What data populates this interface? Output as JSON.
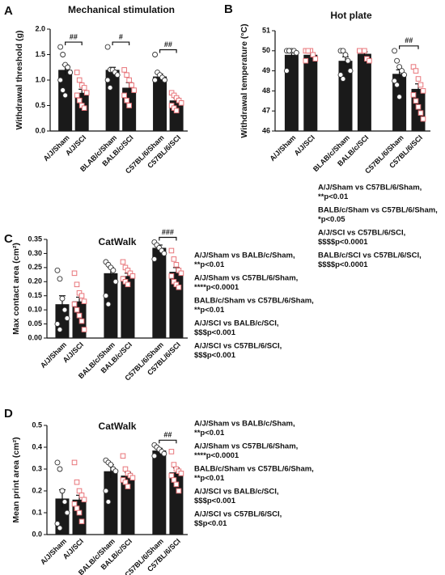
{
  "chart_data": [
    {
      "type": "bar",
      "letter": "A",
      "title": "Mechanical stimulation",
      "ylabel": "Withdrawal threshold (g)",
      "categories": [
        "A/J/Sham",
        "A/J/SCI",
        "BLAB/c/Sham",
        "BALB/c/SCI",
        "C57BL/6/Sham",
        "C57BL/6/SCI"
      ],
      "values": [
        1.2,
        0.75,
        1.2,
        0.85,
        1.07,
        0.6
      ],
      "errors": [
        0.1,
        0.07,
        0.05,
        0.1,
        0.05,
        0.05
      ],
      "points": [
        [
          1.65,
          1.5,
          1.3,
          1.25,
          1.15,
          1.0,
          0.8,
          0.7
        ],
        [
          1.15,
          1.0,
          0.9,
          0.85,
          0.75,
          0.7,
          0.6,
          0.5,
          0.45
        ],
        [
          1.65,
          1.2,
          1.2,
          1.15,
          1.1,
          1.0,
          0.85
        ],
        [
          1.2,
          1.1,
          1.0,
          0.9,
          0.8,
          0.7,
          0.6,
          0.5
        ],
        [
          1.5,
          1.15,
          1.1,
          1.05,
          1.0,
          1.0
        ],
        [
          0.75,
          0.7,
          0.65,
          0.6,
          0.55,
          0.5,
          0.45,
          0.4
        ]
      ],
      "color": "#1a1a1a",
      "sham_color": "#333333",
      "sci_color": "#e8757a",
      "ylim": [
        0,
        2
      ],
      "yticks": [
        {
          "value": 0,
          "label": "0.0"
        },
        0.5,
        {
          "value": 1,
          "label": "1.0"
        },
        1.5,
        {
          "value": 2,
          "label": "2.0"
        }
      ],
      "significance": [
        {
          "label": "##",
          "pair": [
            0,
            1
          ]
        },
        {
          "label": "#",
          "pair": [
            2,
            3
          ]
        },
        {
          "label": "##",
          "pair": [
            4,
            5
          ]
        }
      ]
    },
    {
      "type": "bar",
      "letter": "B",
      "title": "Hot plate",
      "ylabel": "Withdrawal temperature (°C)",
      "categories": [
        "A/J/Sham",
        "A/J/SCI",
        "BLAB/c/Sham",
        "BALB/c/SCI",
        "C57BL/6/Sham",
        "C57BL/6/SCI"
      ],
      "values": [
        49.8,
        49.8,
        49.5,
        49.85,
        48.85,
        48.1
      ],
      "errors": [
        0.15,
        0.1,
        0.2,
        0.1,
        0.2,
        0.25
      ],
      "points": [
        [
          50,
          50,
          50,
          50,
          49.9,
          49,
          50
        ],
        [
          50,
          50,
          50,
          49.8,
          49.6,
          49.5,
          50
        ],
        [
          50,
          50,
          49.8,
          49.5,
          49,
          48.8,
          48.6
        ],
        [
          50,
          50,
          50,
          49.6,
          49.5,
          50
        ],
        [
          50,
          49.5,
          49.2,
          49,
          48.8,
          48.5,
          48.3,
          47.7
        ],
        [
          49.2,
          49,
          48.6,
          48.3,
          48,
          47.8,
          47.5,
          47.2,
          46.9,
          46.6
        ]
      ],
      "color": "#1a1a1a",
      "sham_color": "#333333",
      "sci_color": "#e8757a",
      "ylim": [
        46,
        51
      ],
      "yticks": [
        46,
        47,
        48,
        49,
        50,
        51
      ],
      "significance": [
        {
          "label": "##",
          "pair": [
            4,
            5
          ]
        }
      ],
      "notes": [
        "A/J/Sham vs C57BL/6/Sham,",
        "**p<0.01",
        "BALB/c/Sham vs C57BL/6/Sham,",
        "*p<0.05",
        "A/J/SCI vs C57BL/6/SCI,",
        "$$$$p<0.0001",
        "BALB/c/SCI vs C57BL/6/SCI,",
        "$$$$p<0.0001"
      ]
    },
    {
      "type": "bar",
      "letter": "C",
      "title": "CatWalk",
      "ylabel": "Max contact area (cm²)",
      "categories": [
        "A/J/Sham",
        "A/J/SCI",
        "BALB/c/Sham",
        "BALB/c/SCI",
        "C57BL/6/Sham",
        "C57BL/6/SCI"
      ],
      "values": [
        0.12,
        0.13,
        0.23,
        0.22,
        0.32,
        0.235
      ],
      "errors": [
        0.03,
        0.015,
        0.02,
        0.01,
        0.01,
        0.015
      ],
      "points": [
        [
          0.24,
          0.21,
          0.14,
          0.1,
          0.07,
          0.05,
          0.03
        ],
        [
          0.23,
          0.19,
          0.16,
          0.15,
          0.13,
          0.12,
          0.1,
          0.08,
          0.06,
          0.03
        ],
        [
          0.27,
          0.26,
          0.25,
          0.24,
          0.2,
          0.15,
          0.12
        ],
        [
          0.27,
          0.25,
          0.24,
          0.23,
          0.22,
          0.21,
          0.2,
          0.19
        ],
        [
          0.34,
          0.33,
          0.32,
          0.31,
          0.3,
          0.28
        ],
        [
          0.31,
          0.28,
          0.26,
          0.24,
          0.23,
          0.22,
          0.2,
          0.19,
          0.18
        ]
      ],
      "color": "#1a1a1a",
      "sham_color": "#333333",
      "sci_color": "#e8757a",
      "ylim": [
        0,
        0.35
      ],
      "yticks": [
        {
          "value": 0,
          "label": "0.00"
        },
        0.05,
        {
          "value": 0.1,
          "label": "0.10"
        },
        0.15,
        {
          "value": 0.2,
          "label": "0.20"
        },
        0.25,
        {
          "value": 0.3,
          "label": "0.30"
        },
        0.35
      ],
      "significance": [
        {
          "label": "###",
          "pair": [
            4,
            5
          ]
        }
      ],
      "notes": [
        "A/J/Sham vs BALB/c/Sham,",
        "**p<0.01",
        "A/J/Sham vs C57BL/6/Sham,",
        "****p<0.0001",
        "BALB/c/Sham vs C57BL/6/Sham,",
        "**p<0.01",
        "A/J/SCI vs BALB/c/SCI,",
        "$$$p<0.001",
        "A/J/SCI vs C57BL/6/SCI,",
        "$$$p<0.001"
      ]
    },
    {
      "type": "bar",
      "letter": "D",
      "title": "CatWalk",
      "ylabel": "Mean print area (cm²)",
      "categories": [
        "A/J/Sham",
        "A/J/SCI",
        "BALB/c/Sham",
        "BALB/c/SCI",
        "C57BL/6/Sham",
        "C57BL/6/SCI"
      ],
      "values": [
        0.165,
        0.16,
        0.29,
        0.27,
        0.385,
        0.285
      ],
      "errors": [
        0.04,
        0.02,
        0.03,
        0.015,
        0.01,
        0.02
      ],
      "points": [
        [
          0.33,
          0.3,
          0.2,
          0.15,
          0.1,
          0.05,
          0.03
        ],
        [
          0.33,
          0.24,
          0.2,
          0.18,
          0.16,
          0.14,
          0.12,
          0.1,
          0.06
        ],
        [
          0.34,
          0.33,
          0.32,
          0.3,
          0.29,
          0.2,
          0.15
        ],
        [
          0.36,
          0.3,
          0.28,
          0.27,
          0.26,
          0.25,
          0.24,
          0.22
        ],
        [
          0.41,
          0.4,
          0.39,
          0.38,
          0.37,
          0.36
        ],
        [
          0.38,
          0.32,
          0.3,
          0.29,
          0.28,
          0.27,
          0.25,
          0.23,
          0.2
        ]
      ],
      "color": "#1a1a1a",
      "sham_color": "#333333",
      "sci_color": "#e8757a",
      "ylim": [
        0,
        0.5
      ],
      "yticks": [
        {
          "value": 0,
          "label": "0.0"
        },
        0.1,
        0.2,
        0.3,
        0.4,
        0.5
      ],
      "significance": [
        {
          "label": "##",
          "pair": [
            4,
            5
          ]
        }
      ],
      "notes": [
        "A/J/Sham vs BALB/c/Sham,",
        "**p<0.01",
        "A/J/Sham vs C57BL/6/Sham,",
        "****p<0.0001",
        "BALB/c/Sham vs C57BL/6/Sham,",
        "**p<0.01",
        "A/J/SCI vs BALB/c/SCI,",
        "$$$p<0.001",
        "A/J/SCI vs C57BL/6/SCI,",
        "$$p<0.01"
      ]
    }
  ]
}
